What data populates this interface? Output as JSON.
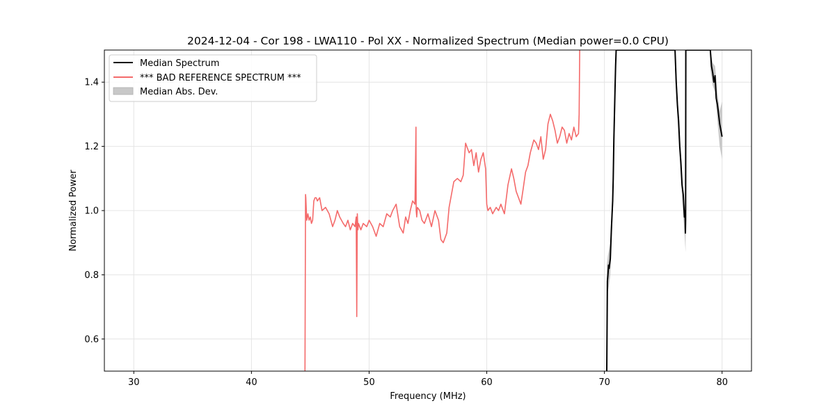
{
  "chart_data": {
    "type": "line",
    "title": "2024-12-04 - Cor 198 - LWA110 - Pol XX - Normalized Spectrum (Median power=0.0 CPU)",
    "xlabel": "Frequency (MHz)",
    "ylabel": "Normalized Power",
    "xlim": [
      27.5,
      82.5
    ],
    "ylim": [
      0.5,
      1.5
    ],
    "xticks": [
      30,
      40,
      50,
      60,
      70,
      80
    ],
    "yticks": [
      0.6,
      0.8,
      1.0,
      1.2,
      1.4
    ],
    "xtick_labels": [
      "30",
      "40",
      "50",
      "60",
      "70",
      "80"
    ],
    "ytick_labels": [
      "0.6",
      "0.8",
      "1.0",
      "1.2",
      "1.4"
    ],
    "grid": true,
    "legend_position": "top-left",
    "legend": [
      {
        "label": "Median Spectrum",
        "kind": "line",
        "color": "#000000"
      },
      {
        "label": "*** BAD REFERENCE SPECTRUM ***",
        "kind": "line",
        "color": "#f46a6a"
      },
      {
        "label": "Median Abs. Dev.",
        "kind": "band",
        "color": "#c8c8c8"
      }
    ],
    "series": [
      {
        "name": "*** BAD REFERENCE SPECTRUM ***",
        "color": "#f46a6a",
        "x": [
          44.55,
          44.6,
          44.62,
          44.7,
          44.8,
          44.9,
          45.0,
          45.1,
          45.2,
          45.3,
          45.4,
          45.5,
          45.6,
          45.8,
          46.0,
          46.3,
          46.6,
          46.9,
          47.1,
          47.3,
          47.5,
          47.8,
          48.0,
          48.2,
          48.4,
          48.6,
          48.8,
          48.9,
          48.95,
          49.0,
          49.05,
          49.1,
          49.3,
          49.5,
          49.8,
          50.0,
          50.3,
          50.6,
          50.9,
          51.2,
          51.5,
          51.8,
          52.0,
          52.3,
          52.6,
          52.9,
          53.1,
          53.3,
          53.5,
          53.7,
          53.9,
          53.98,
          54.0,
          54.05,
          54.1,
          54.3,
          54.5,
          54.7,
          55.0,
          55.3,
          55.6,
          55.9,
          56.1,
          56.3,
          56.6,
          56.8,
          57.0,
          57.2,
          57.5,
          57.8,
          58.0,
          58.2,
          58.3,
          58.5,
          58.7,
          58.9,
          59.1,
          59.3,
          59.5,
          59.7,
          59.9,
          60.0,
          60.1,
          60.3,
          60.5,
          60.8,
          61.0,
          61.2,
          61.5,
          61.8,
          62.1,
          62.3,
          62.5,
          62.7,
          62.9,
          63.1,
          63.3,
          63.5,
          63.7,
          64.0,
          64.2,
          64.4,
          64.6,
          64.8,
          65.0,
          65.2,
          65.4,
          65.6,
          65.8,
          66.0,
          66.2,
          66.4,
          66.6,
          66.8,
          67.0,
          67.2,
          67.4,
          67.6,
          67.8,
          67.85,
          67.9
        ],
        "values": [
          0.5,
          1.05,
          1.04,
          0.97,
          0.99,
          0.97,
          0.98,
          0.96,
          0.97,
          1.03,
          1.04,
          1.04,
          1.03,
          1.04,
          1.0,
          1.01,
          0.99,
          0.95,
          0.97,
          1.0,
          0.98,
          0.96,
          0.95,
          0.97,
          0.94,
          0.96,
          0.95,
          0.98,
          0.67,
          0.99,
          0.94,
          0.96,
          0.94,
          0.96,
          0.95,
          0.97,
          0.95,
          0.92,
          0.96,
          0.95,
          0.99,
          0.98,
          1.0,
          1.02,
          0.95,
          0.93,
          0.98,
          0.96,
          1.0,
          1.03,
          1.02,
          1.26,
          1.0,
          0.98,
          1.01,
          1.0,
          0.97,
          0.96,
          0.99,
          0.95,
          1.0,
          0.97,
          0.91,
          0.9,
          0.93,
          1.01,
          1.05,
          1.09,
          1.1,
          1.09,
          1.11,
          1.21,
          1.2,
          1.18,
          1.19,
          1.14,
          1.18,
          1.12,
          1.16,
          1.18,
          1.13,
          1.02,
          1.0,
          1.01,
          0.99,
          1.01,
          1.0,
          1.02,
          0.99,
          1.08,
          1.13,
          1.1,
          1.06,
          1.04,
          1.02,
          1.07,
          1.12,
          1.14,
          1.18,
          1.22,
          1.21,
          1.19,
          1.23,
          1.16,
          1.19,
          1.27,
          1.3,
          1.28,
          1.25,
          1.21,
          1.23,
          1.26,
          1.25,
          1.21,
          1.24,
          1.22,
          1.26,
          1.23,
          1.24,
          1.3,
          1.5
        ]
      },
      {
        "name": "Median Spectrum",
        "color": "#000000",
        "x": [
          70.2,
          70.25,
          70.3,
          70.35,
          70.4,
          70.5,
          70.55,
          70.6,
          70.7,
          70.75,
          70.8,
          70.9,
          70.95,
          71.0,
          76.0,
          76.1,
          76.2,
          76.3,
          76.4,
          76.5,
          76.6,
          76.7,
          76.8,
          76.85,
          76.88,
          76.9,
          76.92,
          77.0,
          79.0,
          79.1,
          79.2,
          79.3,
          79.4,
          79.5,
          79.6,
          79.7,
          79.8,
          79.9,
          80.0
        ],
        "values": [
          0.5,
          0.78,
          0.8,
          0.83,
          0.82,
          0.85,
          0.9,
          0.95,
          1.03,
          1.1,
          1.22,
          1.38,
          1.45,
          1.5,
          1.5,
          1.4,
          1.33,
          1.28,
          1.2,
          1.15,
          1.08,
          1.05,
          0.98,
          1.0,
          0.93,
          0.97,
          1.5,
          1.5,
          1.5,
          1.45,
          1.43,
          1.4,
          1.42,
          1.35,
          1.33,
          1.3,
          1.27,
          1.25,
          1.23
        ]
      }
    ],
    "mad_band": {
      "name": "Median Abs. Dev.",
      "color": "#c8c8c8",
      "segments": [
        {
          "x": [
            70.2,
            70.3,
            70.4,
            70.5,
            70.6,
            70.7,
            70.8,
            70.9,
            71.0
          ],
          "upper": [
            0.83,
            0.86,
            0.88,
            0.9,
            0.98,
            1.07,
            1.26,
            1.42,
            1.5
          ],
          "lower": [
            0.74,
            0.75,
            0.77,
            0.8,
            0.9,
            0.99,
            1.18,
            1.34,
            1.45
          ]
        },
        {
          "x": [
            76.0,
            76.2,
            76.4,
            76.6,
            76.8,
            76.9
          ],
          "upper": [
            1.5,
            1.37,
            1.24,
            1.11,
            1.02,
            1.0
          ],
          "lower": [
            1.44,
            1.29,
            1.16,
            1.04,
            0.93,
            0.87
          ]
        },
        {
          "x": [
            79.0,
            79.2,
            79.4,
            79.6,
            79.8,
            80.0
          ],
          "upper": [
            1.5,
            1.46,
            1.45,
            1.37,
            1.31,
            1.34
          ],
          "lower": [
            1.44,
            1.39,
            1.37,
            1.28,
            1.2,
            1.16
          ]
        }
      ]
    }
  }
}
